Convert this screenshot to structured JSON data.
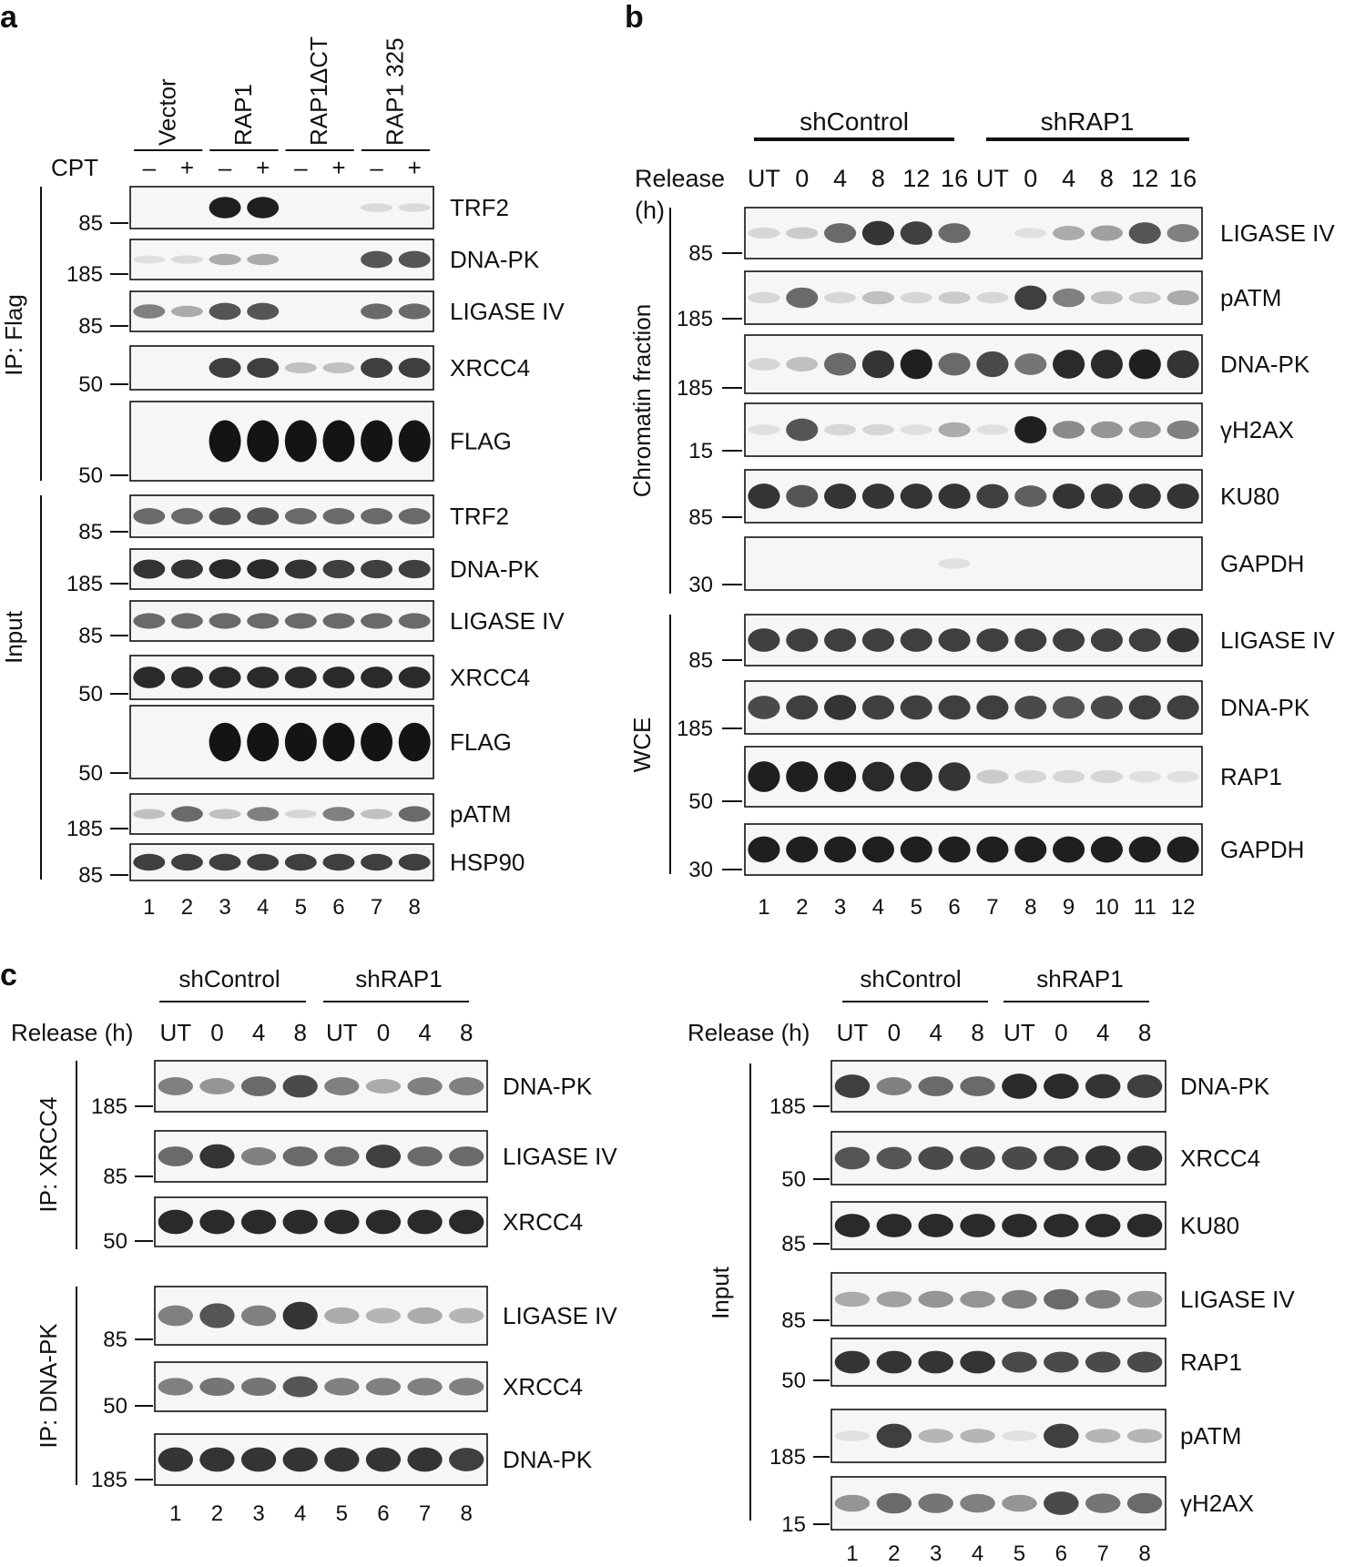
{
  "panels": {
    "a": {
      "letter": "a",
      "cpt_label": "CPT",
      "cpt_signs": [
        "–",
        "+",
        "–",
        "+",
        "–",
        "+",
        "–",
        "+"
      ],
      "groups": [
        "Vector",
        "RAP1",
        "RAP1ΔCT",
        "RAP1 325"
      ],
      "lanes": [
        "1",
        "2",
        "3",
        "4",
        "5",
        "6",
        "7",
        "8"
      ],
      "sections": [
        "IP: Flag",
        "Input"
      ],
      "blots": [
        {
          "name": "TRF2",
          "marker": "85",
          "intensity": [
            0,
            0,
            0.95,
            0.95,
            0,
            0,
            0.08,
            0.08
          ]
        },
        {
          "name": "DNA-PK",
          "marker": "185",
          "intensity": [
            0.05,
            0.08,
            0.3,
            0.3,
            0,
            0,
            0.7,
            0.7
          ]
        },
        {
          "name": "LIGASE IV",
          "marker": "85",
          "intensity": [
            0.5,
            0.3,
            0.7,
            0.7,
            0,
            0,
            0.6,
            0.6
          ]
        },
        {
          "name": "XRCC4",
          "marker": "50",
          "intensity": [
            0,
            0,
            0.8,
            0.8,
            0.2,
            0.2,
            0.8,
            0.8
          ]
        },
        {
          "name": "FLAG",
          "marker": "50",
          "intensity": [
            0,
            0,
            1,
            1,
            1,
            1,
            1,
            1
          ]
        },
        {
          "name": "TRF2",
          "marker": "85",
          "intensity": [
            0.6,
            0.6,
            0.7,
            0.7,
            0.6,
            0.6,
            0.6,
            0.6
          ]
        },
        {
          "name": "DNA-PK",
          "marker": "185",
          "intensity": [
            0.85,
            0.85,
            0.9,
            0.9,
            0.85,
            0.8,
            0.8,
            0.8
          ]
        },
        {
          "name": "LIGASE IV",
          "marker": "85",
          "intensity": [
            0.6,
            0.6,
            0.6,
            0.6,
            0.6,
            0.6,
            0.6,
            0.6
          ]
        },
        {
          "name": "XRCC4",
          "marker": "50",
          "intensity": [
            0.9,
            0.9,
            0.9,
            0.9,
            0.9,
            0.9,
            0.9,
            0.9
          ]
        },
        {
          "name": "FLAG",
          "marker": "50",
          "intensity": [
            0,
            0,
            1,
            1,
            1,
            1,
            1,
            1
          ]
        },
        {
          "name": "pATM",
          "marker": "185",
          "intensity": [
            0.2,
            0.6,
            0.2,
            0.5,
            0.1,
            0.5,
            0.2,
            0.6
          ]
        },
        {
          "name": "HSP90",
          "marker": "85",
          "intensity": [
            0.8,
            0.8,
            0.8,
            0.8,
            0.8,
            0.8,
            0.8,
            0.8
          ]
        }
      ]
    },
    "b": {
      "letter": "b",
      "groups": [
        "shControl",
        "shRAP1"
      ],
      "release_label": "Release",
      "release_unit": "(h)",
      "timepoints": [
        "UT",
        "0",
        "4",
        "8",
        "12",
        "16",
        "UT",
        "0",
        "4",
        "8",
        "12",
        "16"
      ],
      "lanes": [
        "1",
        "2",
        "3",
        "4",
        "5",
        "6",
        "7",
        "8",
        "9",
        "10",
        "11",
        "12"
      ],
      "sections": [
        "Chromatin fraction",
        "WCE"
      ],
      "blots": [
        {
          "name": "LIGASE IV",
          "marker": "85",
          "intensity": [
            0.1,
            0.15,
            0.6,
            0.85,
            0.8,
            0.6,
            0,
            0.05,
            0.3,
            0.35,
            0.7,
            0.5
          ]
        },
        {
          "name": "pATM",
          "marker": "185",
          "intensity": [
            0.1,
            0.6,
            0.1,
            0.2,
            0.1,
            0.15,
            0.1,
            0.8,
            0.5,
            0.2,
            0.15,
            0.3
          ]
        },
        {
          "name": "DNA-PK",
          "marker": "185",
          "intensity": [
            0.1,
            0.2,
            0.6,
            0.85,
            0.95,
            0.6,
            0.75,
            0.55,
            0.9,
            0.9,
            0.95,
            0.85
          ]
        },
        {
          "name": "γH2AX",
          "marker": "15",
          "intensity": [
            0.05,
            0.7,
            0.1,
            0.1,
            0.05,
            0.3,
            0.05,
            0.95,
            0.45,
            0.4,
            0.4,
            0.5
          ]
        },
        {
          "name": "KU80",
          "marker": "85",
          "intensity": [
            0.85,
            0.7,
            0.85,
            0.85,
            0.85,
            0.85,
            0.8,
            0.65,
            0.85,
            0.85,
            0.85,
            0.85
          ]
        },
        {
          "name": "GAPDH",
          "marker": "30",
          "intensity": [
            0,
            0,
            0,
            0,
            0,
            0.05,
            0,
            0,
            0,
            0,
            0,
            0
          ]
        },
        {
          "name": "LIGASE IV",
          "marker": "85",
          "intensity": [
            0.8,
            0.8,
            0.8,
            0.8,
            0.8,
            0.8,
            0.8,
            0.8,
            0.8,
            0.8,
            0.8,
            0.85
          ]
        },
        {
          "name": "DNA-PK",
          "marker": "185",
          "intensity": [
            0.75,
            0.8,
            0.85,
            0.8,
            0.8,
            0.8,
            0.8,
            0.75,
            0.7,
            0.75,
            0.8,
            0.8
          ]
        },
        {
          "name": "RAP1",
          "marker": "50",
          "intensity": [
            0.95,
            0.95,
            0.95,
            0.9,
            0.9,
            0.85,
            0.15,
            0.1,
            0.1,
            0.1,
            0.05,
            0.05
          ]
        },
        {
          "name": "GAPDH",
          "marker": "30",
          "intensity": [
            0.95,
            0.95,
            0.95,
            0.95,
            0.95,
            0.95,
            0.95,
            0.95,
            0.95,
            0.95,
            0.95,
            0.95
          ]
        }
      ]
    },
    "c": {
      "letter": "c",
      "groups": [
        "shControl",
        "shRAP1"
      ],
      "release_label": "Release (h)",
      "timepoints": [
        "UT",
        "0",
        "4",
        "8",
        "UT",
        "0",
        "4",
        "8"
      ],
      "lanes": [
        "1",
        "2",
        "3",
        "4",
        "5",
        "6",
        "7",
        "8"
      ],
      "left_sections": [
        "IP: XRCC4",
        "IP: DNA-PK"
      ],
      "right_section": "Input",
      "left_blots": [
        {
          "name": "DNA-PK",
          "marker": "185",
          "intensity": [
            0.5,
            0.4,
            0.6,
            0.75,
            0.5,
            0.3,
            0.5,
            0.5
          ]
        },
        {
          "name": "LIGASE IV",
          "marker": "85",
          "intensity": [
            0.6,
            0.85,
            0.5,
            0.6,
            0.6,
            0.8,
            0.6,
            0.6
          ]
        },
        {
          "name": "XRCC4",
          "marker": "50",
          "intensity": [
            0.9,
            0.9,
            0.9,
            0.9,
            0.9,
            0.9,
            0.9,
            0.9
          ]
        },
        {
          "name": "LIGASE IV",
          "marker": "85",
          "intensity": [
            0.5,
            0.7,
            0.5,
            0.85,
            0.3,
            0.25,
            0.3,
            0.25
          ]
        },
        {
          "name": "XRCC4",
          "marker": "50",
          "intensity": [
            0.5,
            0.55,
            0.55,
            0.7,
            0.5,
            0.5,
            0.5,
            0.5
          ]
        },
        {
          "name": "DNA-PK",
          "marker": "185",
          "intensity": [
            0.85,
            0.85,
            0.85,
            0.85,
            0.85,
            0.85,
            0.85,
            0.8
          ]
        }
      ],
      "right_blots": [
        {
          "name": "DNA-PK",
          "marker": "185",
          "intensity": [
            0.8,
            0.5,
            0.6,
            0.6,
            0.9,
            0.9,
            0.85,
            0.8
          ]
        },
        {
          "name": "XRCC4",
          "marker": "50",
          "intensity": [
            0.7,
            0.7,
            0.75,
            0.75,
            0.75,
            0.8,
            0.85,
            0.85
          ]
        },
        {
          "name": "KU80",
          "marker": "85",
          "intensity": [
            0.9,
            0.9,
            0.9,
            0.9,
            0.9,
            0.9,
            0.9,
            0.9
          ]
        },
        {
          "name": "LIGASE IV",
          "marker": "85",
          "intensity": [
            0.3,
            0.35,
            0.4,
            0.4,
            0.5,
            0.6,
            0.5,
            0.4
          ]
        },
        {
          "name": "RAP1",
          "marker": "50",
          "intensity": [
            0.85,
            0.85,
            0.85,
            0.85,
            0.75,
            0.75,
            0.75,
            0.75
          ]
        },
        {
          "name": "pATM",
          "marker": "185",
          "intensity": [
            0.05,
            0.8,
            0.25,
            0.25,
            0.05,
            0.8,
            0.25,
            0.25
          ]
        },
        {
          "name": "γH2AX",
          "marker": "15",
          "intensity": [
            0.4,
            0.6,
            0.55,
            0.5,
            0.4,
            0.75,
            0.55,
            0.6
          ]
        }
      ]
    }
  }
}
